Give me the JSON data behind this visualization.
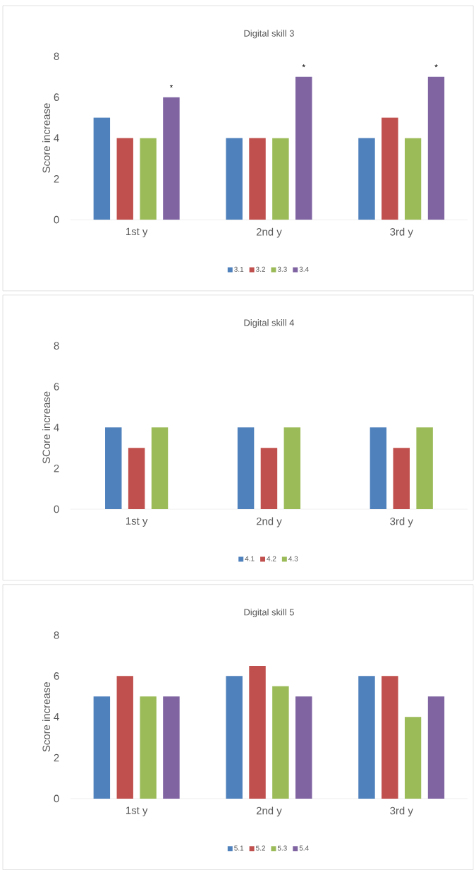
{
  "chart_data": [
    {
      "type": "bar",
      "title": "Digital skill 3",
      "ylabel": "Score increase",
      "categories": [
        "1st y",
        "2nd y",
        "3rd y"
      ],
      "series": [
        {
          "name": "3.1",
          "color": "#4f81bd",
          "values": [
            5,
            4,
            4
          ]
        },
        {
          "name": "3.2",
          "color": "#c0504d",
          "values": [
            4,
            4,
            5
          ]
        },
        {
          "name": "3.3",
          "color": "#9bbb59",
          "values": [
            4,
            4,
            4
          ]
        },
        {
          "name": "3.4",
          "color": "#8064a2",
          "values": [
            6,
            7,
            7
          ]
        }
      ],
      "ylim": [
        0,
        8
      ],
      "yticks": [
        0,
        2,
        4,
        6,
        8
      ],
      "legend": "bottom",
      "annotations": [
        "*",
        "*",
        "*"
      ]
    },
    {
      "type": "bar",
      "title": "Digital skill 4",
      "ylabel": "SCore increase",
      "categories": [
        "1st y",
        "2nd y",
        "3rd y"
      ],
      "series": [
        {
          "name": "4.1",
          "color": "#4f81bd",
          "values": [
            4,
            4,
            4
          ]
        },
        {
          "name": "4.2",
          "color": "#c0504d",
          "values": [
            3,
            3,
            3
          ]
        },
        {
          "name": "4.3",
          "color": "#9bbb59",
          "values": [
            4,
            4,
            4
          ]
        }
      ],
      "ylim": [
        0,
        8
      ],
      "yticks": [
        0,
        2,
        4,
        6,
        8
      ],
      "legend": "bottom"
    },
    {
      "type": "bar",
      "title": "Digital skill 5",
      "ylabel": "Score increase",
      "categories": [
        "1st y",
        "2nd y",
        "3rd y"
      ],
      "series": [
        {
          "name": "5.1",
          "color": "#4f81bd",
          "values": [
            5,
            6,
            6
          ]
        },
        {
          "name": "5.2",
          "color": "#c0504d",
          "values": [
            6,
            6.5,
            6
          ]
        },
        {
          "name": "5.3",
          "color": "#9bbb59",
          "values": [
            5,
            5.5,
            4
          ]
        },
        {
          "name": "5.4",
          "color": "#8064a2",
          "values": [
            5,
            5,
            5
          ]
        }
      ],
      "ylim": [
        0,
        8
      ],
      "yticks": [
        0,
        2,
        4,
        6,
        8
      ],
      "legend": "bottom"
    }
  ]
}
